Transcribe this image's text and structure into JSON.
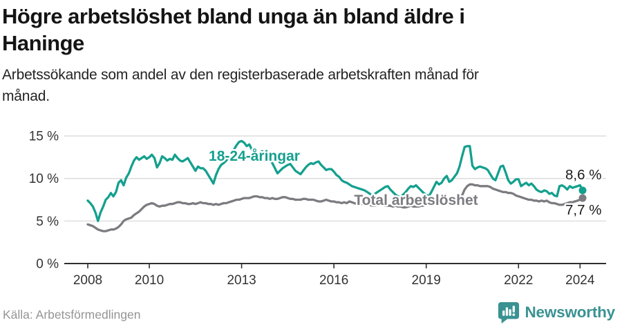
{
  "header": {
    "title_lines": [
      "Högre arbetslöshet bland unga än bland äldre i",
      "Haninge"
    ],
    "subtitle_lines": [
      "Arbetssökande som andel av den registerbaserade arbetskraften månad för",
      "månad."
    ]
  },
  "chart_data": {
    "type": "line",
    "unit": "%",
    "frequency": "monthly",
    "x_start": "2008-01",
    "x_end": "2024-02",
    "ylim": [
      0,
      16.5
    ],
    "grid": "horizontal",
    "legend_position": "inline-labels",
    "y_ticks": [
      {
        "value": 0,
        "label": "0 %"
      },
      {
        "value": 5,
        "label": "5 %"
      },
      {
        "value": 10,
        "label": "10 %"
      },
      {
        "value": 15,
        "label": "15 %"
      }
    ],
    "x_ticks": [
      {
        "month_index": 0,
        "label": "2008"
      },
      {
        "month_index": 24,
        "label": "2010"
      },
      {
        "month_index": 60,
        "label": "2013"
      },
      {
        "month_index": 96,
        "label": "2016"
      },
      {
        "month_index": 132,
        "label": "2019"
      },
      {
        "month_index": 168,
        "label": "2022"
      },
      {
        "month_index": 192,
        "label": "2024"
      }
    ],
    "series": [
      {
        "name": "18-24-åringar",
        "color": "#14a08e",
        "end_label": "8,6 %",
        "end_value": 8.6,
        "values": [
          7.4,
          7.1,
          6.7,
          6.0,
          5.0,
          6.0,
          6.7,
          7.5,
          7.8,
          8.3,
          7.9,
          8.4,
          9.5,
          9.8,
          9.2,
          10.1,
          10.6,
          11.4,
          12.1,
          12.5,
          12.2,
          12.4,
          12.6,
          12.3,
          12.5,
          12.8,
          12.4,
          11.3,
          11.8,
          12.6,
          12.4,
          12.1,
          12.3,
          12.2,
          12.8,
          12.4,
          12.1,
          12.0,
          12.2,
          12.4,
          11.9,
          11.4,
          10.9,
          11.4,
          11.2,
          11.2,
          10.9,
          10.4,
          9.9,
          9.4,
          10.4,
          11.1,
          11.6,
          11.8,
          12.1,
          12.5,
          12.9,
          13.4,
          13.9,
          14.3,
          14.4,
          14.2,
          13.8,
          14.0,
          13.4,
          13.1,
          12.9,
          13.0,
          13.2,
          13.0,
          12.6,
          12.2,
          11.8,
          11.2,
          10.6,
          10.9,
          11.2,
          11.4,
          11.6,
          11.7,
          11.3,
          10.9,
          10.7,
          10.5,
          10.9,
          11.3,
          11.6,
          11.8,
          11.7,
          11.9,
          12.0,
          11.6,
          11.3,
          11.0,
          11.1,
          11.1,
          10.8,
          10.4,
          10.2,
          9.8,
          9.6,
          9.5,
          9.3,
          9.1,
          9.0,
          8.9,
          8.8,
          8.7,
          8.6,
          8.4,
          8.2,
          8.0,
          8.2,
          8.4,
          8.6,
          8.8,
          9.0,
          9.1,
          8.7,
          8.4,
          8.1,
          7.9,
          7.8,
          8.1,
          8.4,
          8.8,
          9.1,
          9.0,
          9.2,
          8.9,
          8.6,
          8.3,
          8.1,
          7.9,
          8.4,
          9.0,
          9.6,
          9.3,
          9.5,
          10.0,
          10.3,
          9.6,
          9.8,
          10.2,
          10.6,
          11.4,
          12.6,
          13.7,
          13.8,
          13.8,
          11.5,
          11.1,
          11.3,
          11.4,
          11.3,
          11.2,
          11.0,
          10.5,
          10.0,
          9.8,
          10.6,
          11.4,
          11.5,
          10.7,
          9.8,
          9.4,
          9.6,
          9.9,
          9.9,
          9.1,
          9.3,
          9.5,
          9.2,
          9.4,
          9.1,
          8.7,
          8.5,
          8.4,
          8.6,
          8.5,
          8.2,
          8.3,
          8.0,
          7.9,
          9.1,
          9.2,
          9.0,
          8.7,
          9.1,
          8.9,
          9.0,
          9.1,
          9.2,
          8.6
        ]
      },
      {
        "name": "Total arbetslöshet",
        "color": "#7b7b80",
        "end_label": "7,7 %",
        "end_value": 7.7,
        "values": [
          4.6,
          4.5,
          4.4,
          4.2,
          4.0,
          3.9,
          3.8,
          3.8,
          3.9,
          4.0,
          4.0,
          4.1,
          4.3,
          4.6,
          5.0,
          5.2,
          5.3,
          5.4,
          5.7,
          5.9,
          6.1,
          6.4,
          6.7,
          6.9,
          7.0,
          7.1,
          7.0,
          6.8,
          6.7,
          6.8,
          6.8,
          6.9,
          7.0,
          7.0,
          7.1,
          7.2,
          7.2,
          7.1,
          7.1,
          7.0,
          7.0,
          7.1,
          7.0,
          7.1,
          7.2,
          7.1,
          7.1,
          7.0,
          7.0,
          6.9,
          7.0,
          6.9,
          7.0,
          7.1,
          7.1,
          7.2,
          7.3,
          7.4,
          7.5,
          7.5,
          7.6,
          7.7,
          7.7,
          7.7,
          7.8,
          7.9,
          7.9,
          7.8,
          7.8,
          7.7,
          7.7,
          7.6,
          7.7,
          7.6,
          7.6,
          7.7,
          7.8,
          7.8,
          7.7,
          7.6,
          7.6,
          7.5,
          7.5,
          7.5,
          7.6,
          7.6,
          7.5,
          7.5,
          7.5,
          7.4,
          7.3,
          7.3,
          7.4,
          7.5,
          7.4,
          7.3,
          7.3,
          7.2,
          7.2,
          7.1,
          7.2,
          7.1,
          7.3,
          7.2,
          7.1,
          7.0,
          7.0,
          7.0,
          7.0,
          6.9,
          6.9,
          6.8,
          6.8,
          6.9,
          7.0,
          6.9,
          6.8,
          6.8,
          6.8,
          6.7,
          6.8,
          6.7,
          6.7,
          6.6,
          6.6,
          6.7,
          6.8,
          6.7,
          6.7,
          6.7,
          6.8,
          6.8,
          6.9,
          6.9,
          7.0,
          7.1,
          7.0,
          7.1,
          7.2,
          7.1,
          7.1,
          7.2,
          7.2,
          7.3,
          7.3,
          7.4,
          8.0,
          8.7,
          9.1,
          9.3,
          9.3,
          9.2,
          9.2,
          9.1,
          9.1,
          9.1,
          9.1,
          9.0,
          8.8,
          8.7,
          8.6,
          8.5,
          8.4,
          8.4,
          8.3,
          8.3,
          8.2,
          8.0,
          7.9,
          7.8,
          7.7,
          7.6,
          7.5,
          7.5,
          7.4,
          7.4,
          7.3,
          7.4,
          7.3,
          7.4,
          7.2,
          7.1,
          7.1,
          7.0,
          6.9,
          6.9,
          7.0,
          7.1,
          7.2,
          7.2,
          7.3,
          7.4,
          7.5,
          7.7
        ]
      }
    ]
  },
  "footer": {
    "source": "Källa: Arbetsförmedlingen",
    "brand": "Newsworthy",
    "brand_color": "#3a9292"
  }
}
